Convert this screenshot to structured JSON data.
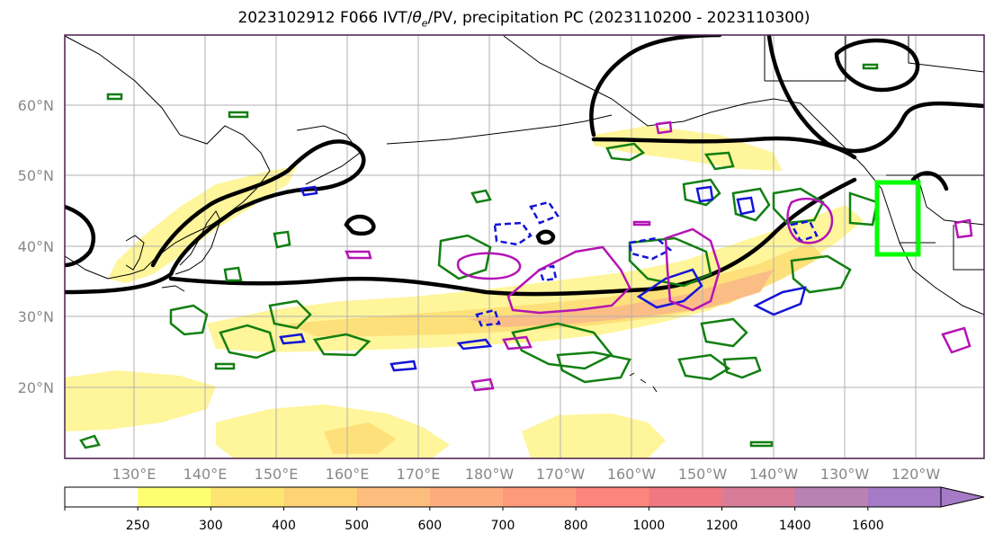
{
  "header": {
    "title_prefix": "2023102912 F066 IVT/",
    "title_theta": "θ",
    "title_sub": "e",
    "title_suffix": "/PV, precipitation PC (2023110200 - 2023110300)"
  },
  "map": {
    "lat_labels": [
      "60°N",
      "50°N",
      "40°N",
      "30°N",
      "20°N"
    ],
    "lon_labels": [
      "130°E",
      "140°E",
      "150°E",
      "160°E",
      "170°E",
      "180°W",
      "170°W",
      "160°W",
      "150°W",
      "140°W",
      "130°W",
      "120°W"
    ],
    "label_color": "#888888",
    "frame_color": "#4b1d4e"
  },
  "colorbar": {
    "ticks": [
      "250",
      "300",
      "400",
      "500",
      "600",
      "700",
      "800",
      "1000",
      "1200",
      "1400",
      "1600"
    ],
    "colors": [
      "#ffffff",
      "#fffe6f",
      "#fee572",
      "#fed376",
      "#fdbd7c",
      "#fdac7d",
      "#fd9a7b",
      "#fc867d",
      "#ef7882",
      "#d97c98",
      "#b882b2",
      "#a57ac6"
    ]
  },
  "legend_colors": {
    "ivt_low": "#fff59a",
    "ivt_mid": "#fde07a",
    "ivt_high": "#fbbd86",
    "pv_contour": "#000000",
    "precip_green": "#117f11",
    "precip_blue": "#1414d8",
    "precip_magenta": "#b414b4",
    "highlight_box": "#00ff00"
  }
}
